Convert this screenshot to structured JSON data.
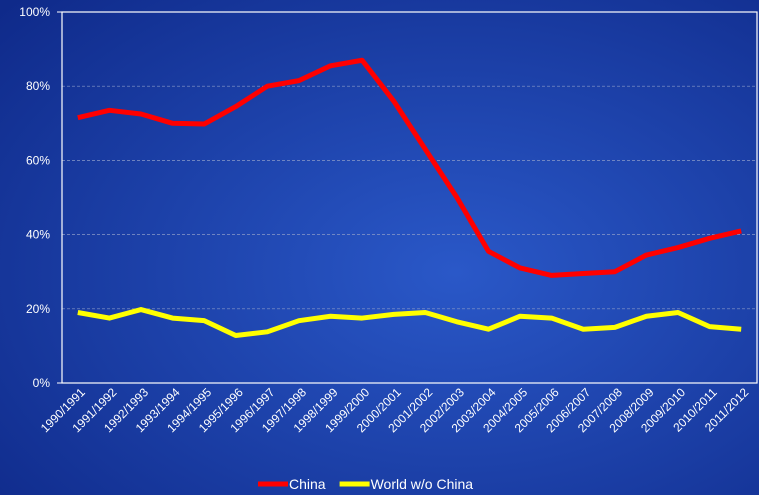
{
  "chart_data": {
    "type": "line",
    "categories": [
      "1990/1991",
      "1991/1992",
      "1992/1993",
      "1993/1994",
      "1994/1995",
      "1995/1996",
      "1996/1997",
      "1997/1998",
      "1998/1999",
      "1999/2000",
      "2000/2001",
      "2001/2002",
      "2002/2003",
      "2003/2004",
      "2004/2005",
      "2005/2006",
      "2006/2007",
      "2007/2008",
      "2008/2009",
      "2009/2010",
      "2010/2011",
      "2011/2012"
    ],
    "series": [
      {
        "name": "China",
        "color": "#ff0000",
        "values": [
          71.5,
          73.5,
          72.5,
          70,
          69.8,
          74.5,
          80,
          81.5,
          85.5,
          87,
          76,
          63,
          50,
          35.5,
          31,
          29,
          29.5,
          30,
          34.5,
          36.5,
          39,
          41
        ]
      },
      {
        "name": "World w/o China",
        "color": "#ffff00",
        "values": [
          19,
          17.5,
          19.8,
          17.5,
          16.8,
          12.8,
          13.8,
          16.8,
          18,
          17.5,
          18.5,
          19,
          16.5,
          14.5,
          18,
          17.5,
          14.5,
          15,
          18,
          19,
          15.2,
          14.5
        ]
      }
    ],
    "ylim": [
      0,
      100
    ],
    "yticks": [
      {
        "value": 0,
        "label": "0%"
      },
      {
        "value": 20,
        "label": "20%"
      },
      {
        "value": 40,
        "label": "40%"
      },
      {
        "value": 60,
        "label": "60%"
      },
      {
        "value": 80,
        "label": "80%"
      },
      {
        "value": 100,
        "label": "100%"
      }
    ],
    "grid": true,
    "legend": "bottom"
  }
}
